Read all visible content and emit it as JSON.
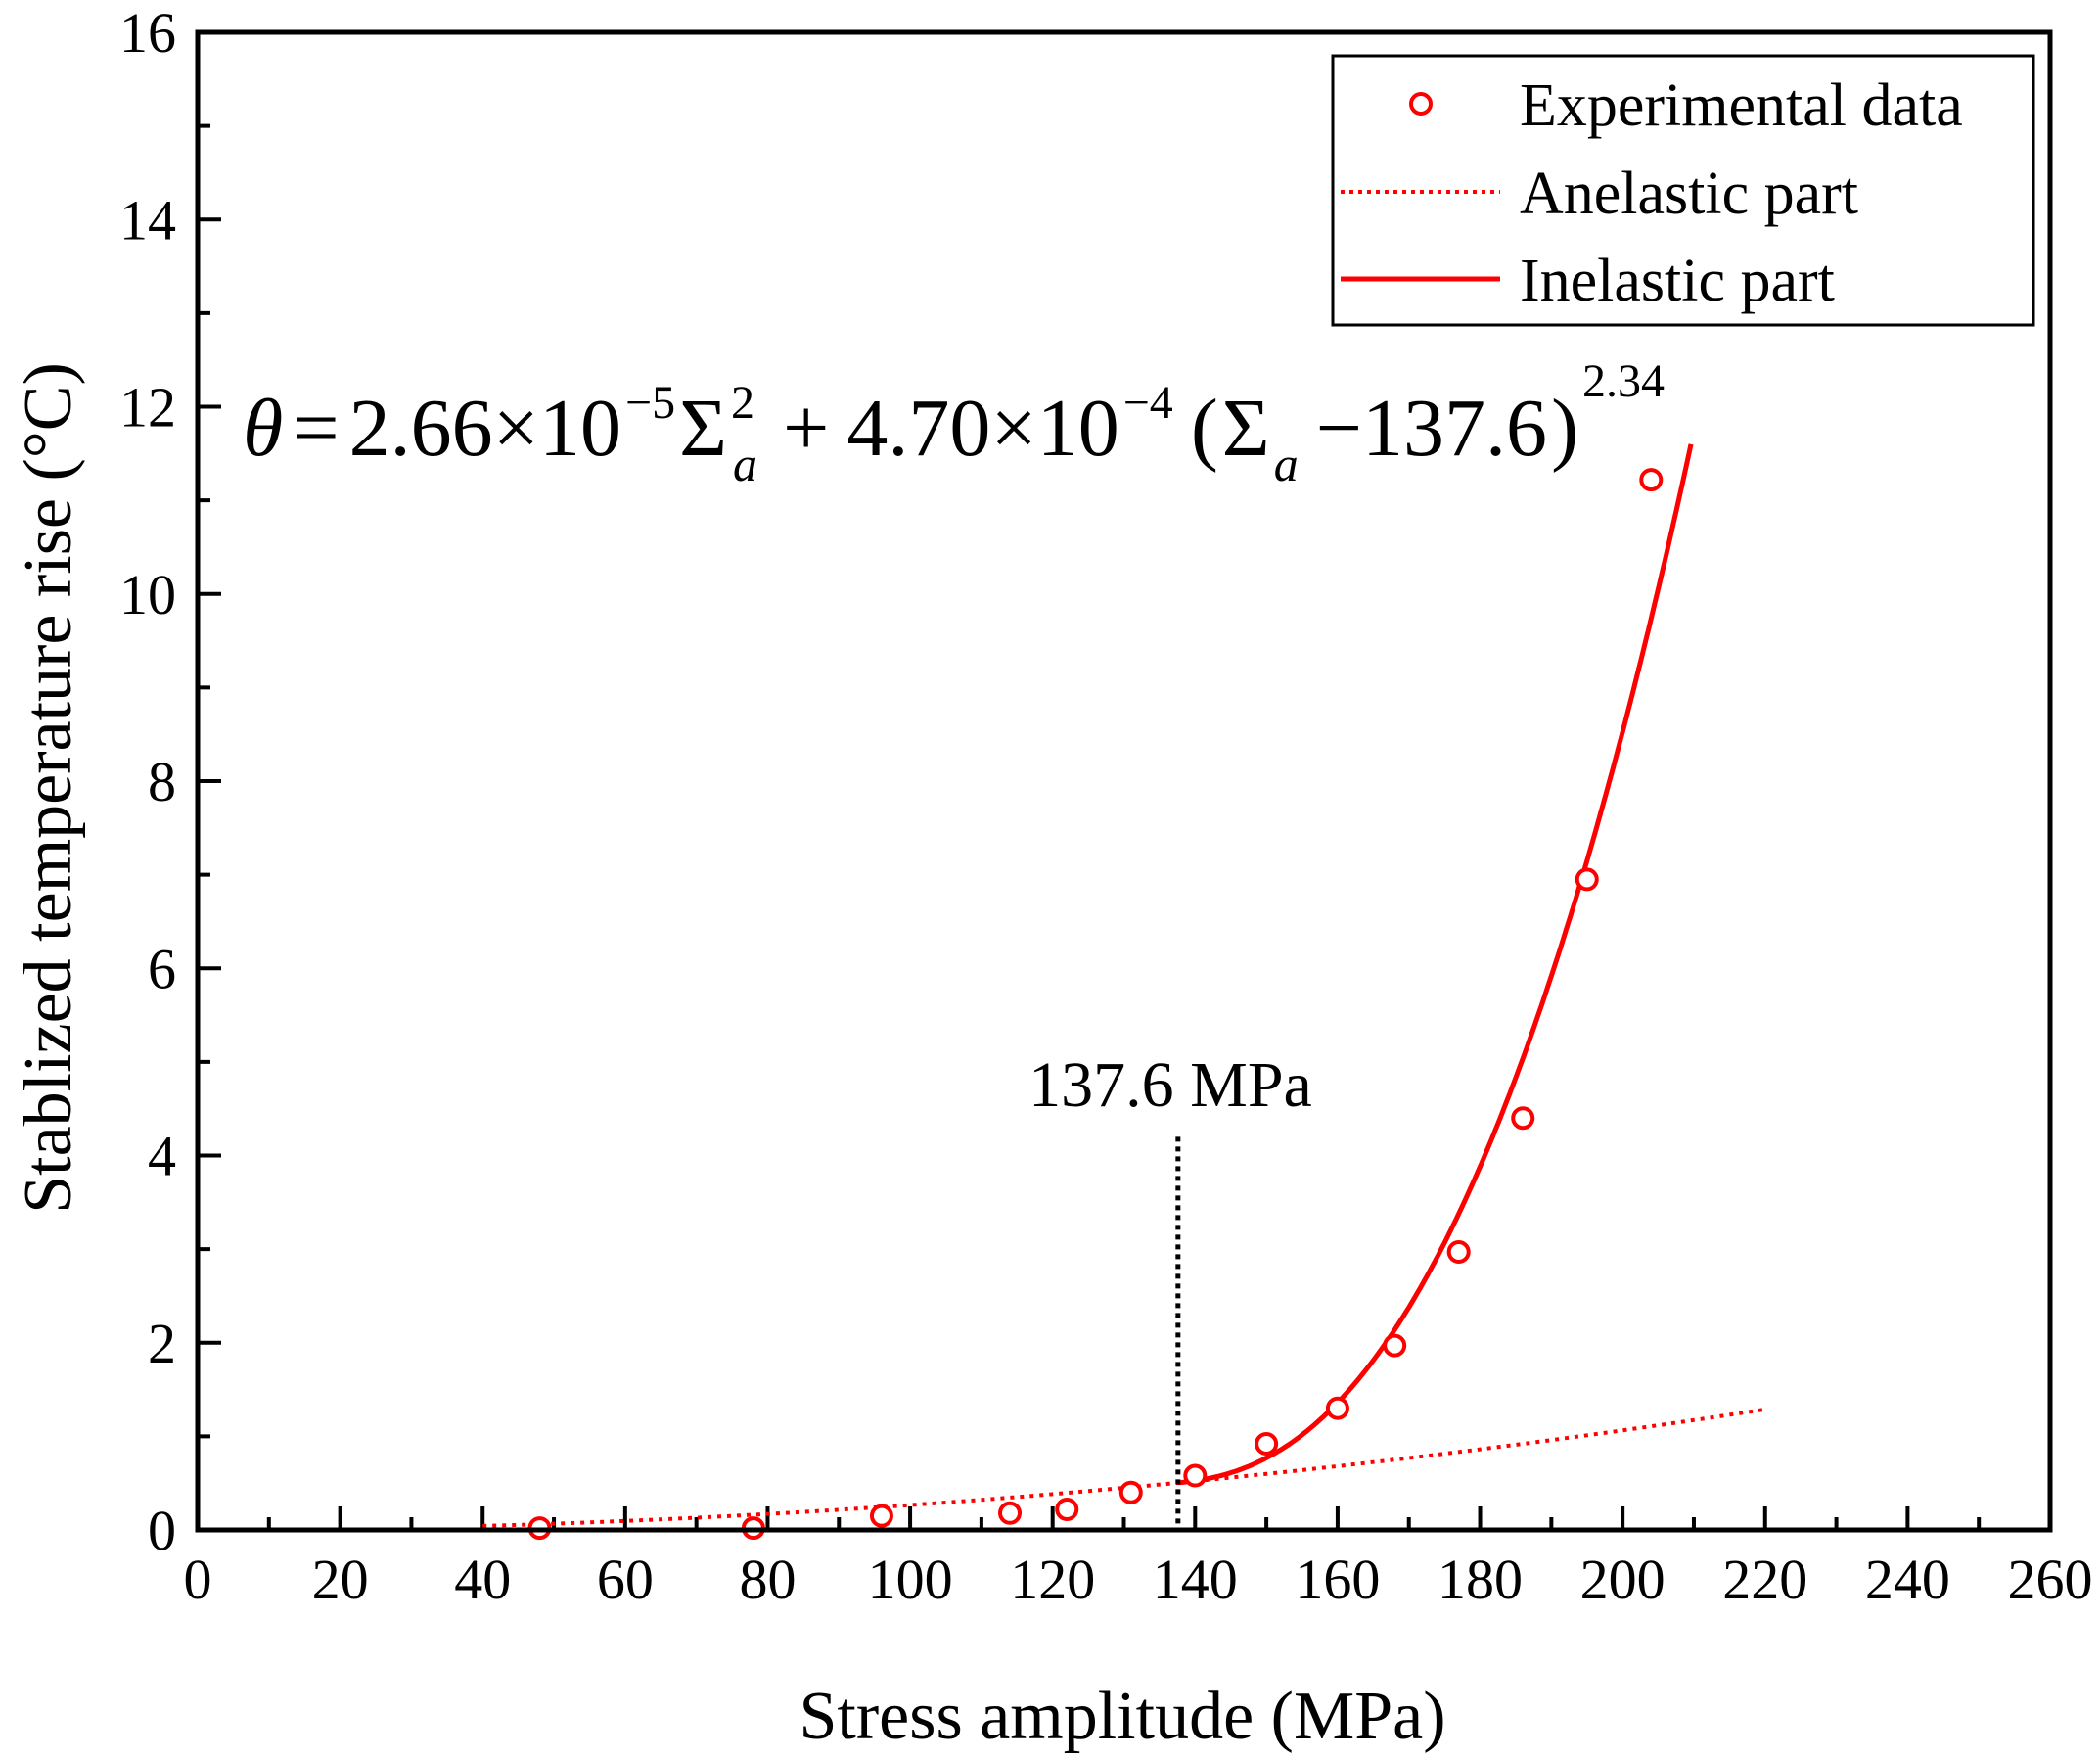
{
  "chart_data": {
    "type": "scatter",
    "xlabel": "Stress amplitude (MPa)",
    "ylabel": "Stablized temperature rise (°C)",
    "xlim": [
      0,
      260
    ],
    "ylim": [
      0,
      16
    ],
    "xticks": [
      "0",
      "20",
      "40",
      "60",
      "80",
      "100",
      "120",
      "140",
      "160",
      "180",
      "200",
      "220",
      "240",
      "260"
    ],
    "yticks": [
      "0",
      "2",
      "4",
      "6",
      "8",
      "10",
      "12",
      "14",
      "16"
    ],
    "series": [
      {
        "name": "Experimental data",
        "kind": "scatter",
        "color": "#ff0000",
        "x": [
          48,
          78,
          96,
          114,
          122,
          131,
          140,
          150,
          160,
          168,
          177,
          186,
          195,
          204
        ],
        "y": [
          0.02,
          0.02,
          0.15,
          0.18,
          0.22,
          0.4,
          0.58,
          0.92,
          1.3,
          1.97,
          2.97,
          4.4,
          6.95,
          11.22
        ]
      },
      {
        "name": "Anelastic part",
        "kind": "line-dotted",
        "color": "#ff0000",
        "x_range": [
          40,
          220
        ],
        "formula": "2.66e-5 * x^2"
      },
      {
        "name": "Inelastic part",
        "kind": "line-solid",
        "color": "#ff0000",
        "x_range": [
          137.6,
          210
        ],
        "formula": "2.66e-5 * x^2 + 4.70e-4 * (x - 137.6)^2.34"
      }
    ],
    "threshold": {
      "x": 137.6,
      "y_top": 4.2,
      "label": "137.6 MPa"
    },
    "equation": {
      "theta": "θ",
      "eq": "=",
      "c1": "2.66×10",
      "e1": "−5",
      "sigma": "Σ",
      "sub": "a",
      "sq": "2",
      "plus": "+",
      "c2": "4.70×10",
      "e2": "−4",
      "lparen": "(",
      "minus": "−137.6",
      "rparen": ")",
      "power": "2.34"
    },
    "legend": {
      "position": "top-right",
      "entries": [
        "Experimental data",
        "Anelastic part",
        "Inelastic part"
      ]
    }
  }
}
